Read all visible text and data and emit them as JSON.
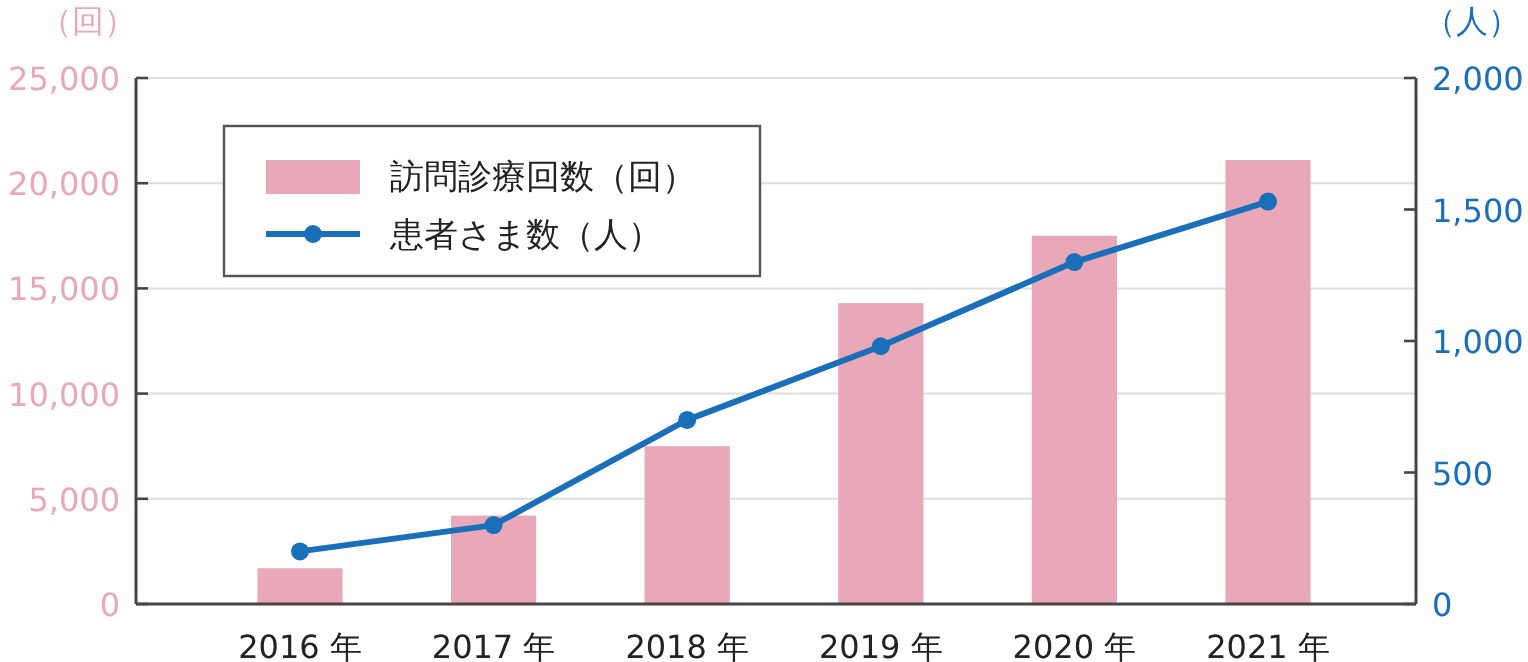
{
  "chart_data": {
    "type": "bar",
    "categories": [
      "2016 年",
      "2017 年",
      "2018 年",
      "2019 年",
      "2020 年",
      "2021 年"
    ],
    "ylabel": "（回）",
    "y2label": "（人）",
    "series": [
      {
        "name": "訪問診療回数（回）",
        "color": "#e9a8b8",
        "values": [
          1700,
          4200,
          7500,
          14300,
          17500,
          21100
        ]
      },
      {
        "name": "患者さま数（人）",
        "type": "line",
        "axis": "y2",
        "color": "#1a6fba",
        "marker": "circle",
        "line_style": "solid",
        "values": [
          200,
          300,
          700,
          980,
          1300,
          1530
        ]
      }
    ],
    "ylim": [
      0,
      25000
    ],
    "yticks": [
      0,
      {
        "value": 5000,
        "label": "5,000"
      },
      {
        "value": 10000,
        "label": "10,000"
      },
      {
        "value": 15000,
        "label": "15,000"
      },
      {
        "value": 20000,
        "label": "20,000"
      },
      {
        "value": 25000,
        "label": "25,000"
      }
    ],
    "y2lim": [
      0,
      2000
    ],
    "y2ticks": [
      0,
      500,
      {
        "value": 1000,
        "label": "1,000"
      },
      {
        "value": 1500,
        "label": "1,500"
      },
      {
        "value": 2000,
        "label": "2,000"
      }
    ],
    "grid": "y",
    "legend": "top left"
  }
}
